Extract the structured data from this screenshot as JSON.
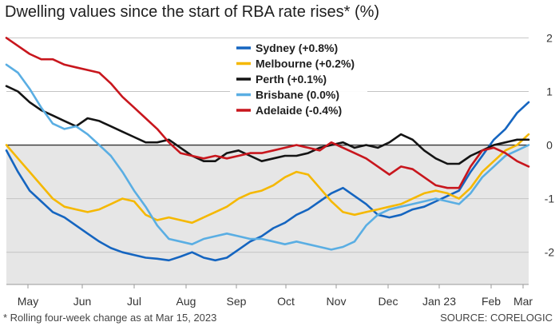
{
  "title": "Dwelling values since the start of RBA rate rises* (%)",
  "footnote": "* Rolling four-week change as at Mar 15, 2023",
  "source": "SOURCE: CORELOGIC",
  "chart_data": {
    "type": "line",
    "title": "Dwelling values since the start of RBA rate rises* (%)",
    "xlabel": "",
    "ylabel": "",
    "x_ticks": [
      "May",
      "Jun",
      "Jul",
      "Aug",
      "Sep",
      "Oct",
      "Nov",
      "Dec",
      "Jan 23",
      "Feb",
      "Mar"
    ],
    "y_ticks": [
      2,
      1,
      0,
      -1,
      -2
    ],
    "ylim": [
      -2.6,
      2.05
    ],
    "y_axis_side": "right",
    "grid": true,
    "negative_region_shaded": true,
    "legend_position": "top-center",
    "x": [
      "May 2",
      "May 9",
      "May 16",
      "May 23",
      "May 30",
      "Jun 6",
      "Jun 13",
      "Jun 20",
      "Jun 27",
      "Jul 4",
      "Jul 11",
      "Jul 18",
      "Jul 25",
      "Aug 1",
      "Aug 8",
      "Aug 15",
      "Aug 22",
      "Aug 29",
      "Sep 5",
      "Sep 12",
      "Sep 19",
      "Sep 26",
      "Oct 3",
      "Oct 10",
      "Oct 17",
      "Oct 24",
      "Oct 31",
      "Nov 7",
      "Nov 14",
      "Nov 21",
      "Nov 28",
      "Dec 5",
      "Dec 12",
      "Dec 19",
      "Dec 26",
      "Jan 2",
      "Jan 9",
      "Jan 16",
      "Jan 23",
      "Jan 30",
      "Feb 6",
      "Feb 13",
      "Feb 20",
      "Feb 27",
      "Mar 6",
      "Mar 15"
    ],
    "series": [
      {
        "name": "Sydney (+0.8%)",
        "color": "#1565c0",
        "values": [
          -0.1,
          -0.5,
          -0.85,
          -1.05,
          -1.25,
          -1.35,
          -1.5,
          -1.65,
          -1.8,
          -1.92,
          -2.0,
          -2.05,
          -2.1,
          -2.12,
          -2.15,
          -2.08,
          -2.0,
          -2.1,
          -2.15,
          -2.1,
          -1.95,
          -1.8,
          -1.7,
          -1.55,
          -1.45,
          -1.3,
          -1.2,
          -1.05,
          -0.9,
          -0.8,
          -0.95,
          -1.1,
          -1.3,
          -1.35,
          -1.3,
          -1.2,
          -1.15,
          -1.05,
          -0.95,
          -0.85,
          -0.5,
          -0.2,
          0.1,
          0.3,
          0.6,
          0.8
        ]
      },
      {
        "name": "Melbourne (+0.2%)",
        "color": "#f5b800",
        "values": [
          0.0,
          -0.25,
          -0.5,
          -0.75,
          -1.0,
          -1.15,
          -1.2,
          -1.25,
          -1.2,
          -1.1,
          -1.0,
          -1.05,
          -1.3,
          -1.4,
          -1.35,
          -1.4,
          -1.45,
          -1.35,
          -1.25,
          -1.15,
          -1.0,
          -0.9,
          -0.85,
          -0.75,
          -0.6,
          -0.5,
          -0.55,
          -0.8,
          -1.05,
          -1.25,
          -1.3,
          -1.25,
          -1.2,
          -1.15,
          -1.1,
          -1.0,
          -0.9,
          -0.85,
          -0.9,
          -1.0,
          -0.8,
          -0.5,
          -0.3,
          -0.1,
          0.0,
          0.2
        ]
      },
      {
        "name": "Perth (+0.1%)",
        "color": "#141414",
        "values": [
          1.1,
          1.0,
          0.8,
          0.65,
          0.55,
          0.45,
          0.35,
          0.5,
          0.45,
          0.35,
          0.25,
          0.15,
          0.05,
          0.05,
          0.1,
          -0.05,
          -0.2,
          -0.3,
          -0.3,
          -0.15,
          -0.1,
          -0.2,
          -0.3,
          -0.25,
          -0.2,
          -0.2,
          -0.15,
          -0.05,
          0.0,
          0.05,
          -0.05,
          0.0,
          -0.05,
          0.05,
          0.2,
          0.1,
          -0.1,
          -0.25,
          -0.35,
          -0.35,
          -0.2,
          -0.1,
          0.0,
          0.05,
          0.1,
          0.1
        ]
      },
      {
        "name": "Brisbane (0.0%)",
        "color": "#5aaee3",
        "values": [
          1.5,
          1.35,
          1.05,
          0.7,
          0.4,
          0.3,
          0.35,
          0.2,
          0.0,
          -0.2,
          -0.5,
          -0.85,
          -1.15,
          -1.5,
          -1.75,
          -1.8,
          -1.85,
          -1.75,
          -1.7,
          -1.65,
          -1.7,
          -1.75,
          -1.75,
          -1.8,
          -1.85,
          -1.8,
          -1.85,
          -1.9,
          -1.95,
          -1.9,
          -1.8,
          -1.5,
          -1.3,
          -1.2,
          -1.15,
          -1.1,
          -1.05,
          -1.0,
          -1.05,
          -1.1,
          -0.9,
          -0.6,
          -0.4,
          -0.2,
          -0.1,
          0.0
        ]
      },
      {
        "name": "Adelaide (-0.4%)",
        "color": "#c8161d",
        "values": [
          2.0,
          1.85,
          1.7,
          1.6,
          1.6,
          1.5,
          1.45,
          1.4,
          1.35,
          1.15,
          0.9,
          0.7,
          0.5,
          0.3,
          0.05,
          -0.15,
          -0.2,
          -0.25,
          -0.2,
          -0.25,
          -0.2,
          -0.15,
          -0.15,
          -0.1,
          -0.05,
          0.0,
          -0.05,
          -0.1,
          0.05,
          -0.05,
          -0.15,
          -0.25,
          -0.4,
          -0.55,
          -0.4,
          -0.45,
          -0.6,
          -0.75,
          -0.8,
          -0.8,
          -0.4,
          -0.1,
          -0.05,
          -0.15,
          -0.3,
          -0.4
        ]
      }
    ]
  }
}
